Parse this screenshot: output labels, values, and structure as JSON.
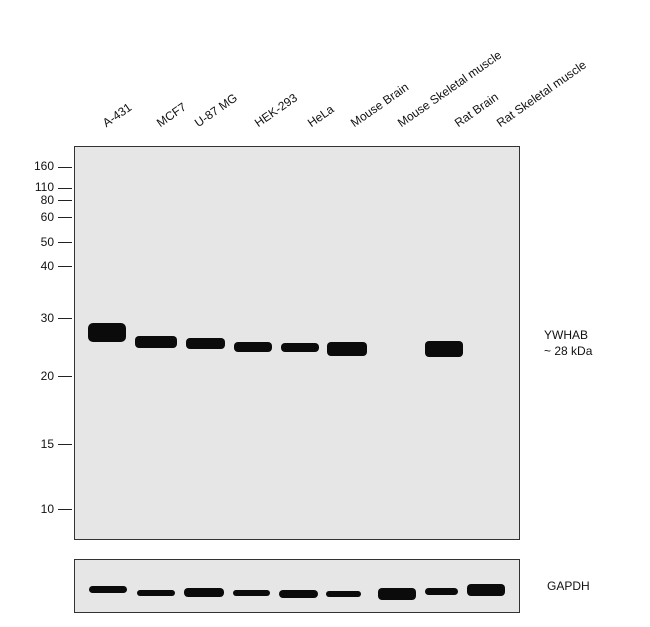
{
  "lanes": [
    "A-431",
    "MCF7",
    "U-87 MG",
    "HEK-293",
    "HeLa",
    "Mouse Brain",
    "Mouse Skeletal muscle",
    "Rat Brain",
    "Rat Skeletal muscle"
  ],
  "markers": [
    "160",
    "110",
    "80",
    "60",
    "50",
    "40",
    "30",
    "20",
    "15",
    "10"
  ],
  "target": {
    "name": "YWHAB",
    "size": "~ 28 kDa"
  },
  "control": {
    "name": "GAPDH"
  }
}
